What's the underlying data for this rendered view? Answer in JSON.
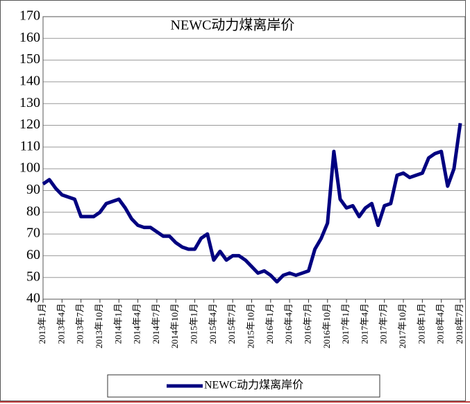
{
  "chart_data": {
    "type": "line",
    "title": "NEWC动力煤离岸价",
    "categories": [
      "2013年1月",
      null,
      null,
      "2013年4月",
      null,
      null,
      "2013年7月",
      null,
      null,
      "2013年10月",
      null,
      null,
      "2014年1月",
      null,
      null,
      "2014年4月",
      null,
      null,
      "2014年7月",
      null,
      null,
      "2014年10月",
      null,
      null,
      "2015年1月",
      null,
      null,
      "2015年4月",
      null,
      null,
      "2015年7月",
      null,
      null,
      "2015年10月",
      null,
      null,
      "2016年1月",
      null,
      null,
      "2016年4月",
      null,
      null,
      "2016年7月",
      null,
      null,
      "2016年10月",
      null,
      null,
      "2017年1月",
      null,
      null,
      "2017年4月",
      null,
      null,
      "2017年7月",
      null,
      null,
      "2017年10月",
      null,
      null,
      "2018年1月",
      null,
      null,
      "2018年4月",
      null,
      null,
      "2018年7月"
    ],
    "series": [
      {
        "name": "NEWC动力煤离岸价",
        "color": "#000080",
        "values": [
          93,
          95,
          91,
          88,
          87,
          86,
          78,
          78,
          78,
          80,
          84,
          85,
          86,
          82,
          77,
          74,
          73,
          73,
          71,
          69,
          69,
          66,
          64,
          63,
          63,
          68,
          70,
          58,
          62,
          58,
          60,
          60,
          58,
          55,
          52,
          53,
          51,
          48,
          51,
          52,
          51,
          52,
          53,
          63,
          68,
          75,
          108,
          86,
          82,
          83,
          78,
          82,
          84,
          74,
          83,
          84,
          97,
          98,
          96,
          97,
          98,
          105,
          107,
          108,
          92,
          100,
          121
        ]
      }
    ],
    "ylim": [
      40,
      170
    ],
    "yticks": [
      40,
      50,
      60,
      70,
      80,
      90,
      100,
      110,
      120,
      130,
      140,
      150,
      160,
      170
    ],
    "grid": true,
    "legend": "bottom"
  }
}
